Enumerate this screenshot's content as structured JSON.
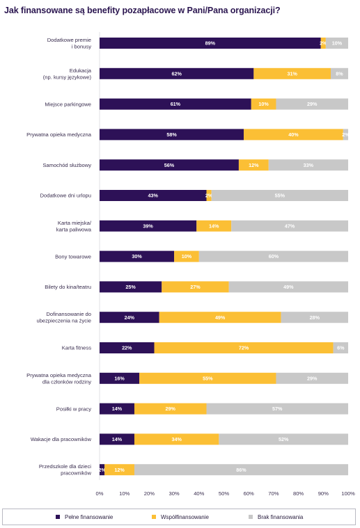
{
  "title": "Jak finansowane są benefity pozapłacowe w Pani/Pana organizacji?",
  "chart_data": {
    "type": "bar",
    "orientation": "horizontal",
    "stacked": true,
    "categories": [
      [
        "Dodatkowe premie",
        "i bonusy"
      ],
      [
        "Edukacja",
        "(np. kursy językowe)"
      ],
      [
        "Miejsce parkingowe"
      ],
      [
        "Prywatna opieka medyczna"
      ],
      [
        "Samochód służbowy"
      ],
      [
        "Dodatkowe dni urlopu"
      ],
      [
        "Karta miejska/",
        "karta paliwowa"
      ],
      [
        "Bony towarowe"
      ],
      [
        "Bilety do kina/teatru"
      ],
      [
        "Dofinansowanie do",
        "ubezpieczenia na życie"
      ],
      [
        "Karta fitness"
      ],
      [
        "Prywatna opieka medyczna",
        "dla członków rodziny"
      ],
      [
        "Posiłki w pracy"
      ],
      [
        "Wakacje dla pracowników"
      ],
      [
        "Przedszkole dla dzieci",
        "pracowników"
      ]
    ],
    "series": [
      {
        "name": "Pełne finansowanie",
        "color": "#2d1157",
        "label_color": "#ffffff",
        "values": [
          89,
          62,
          61,
          58,
          56,
          43,
          39,
          30,
          25,
          24,
          22,
          16,
          14,
          14,
          2
        ]
      },
      {
        "name": "Współfinansowanie",
        "color": "#fbbf35",
        "label_color": "#ffffff",
        "values": [
          2,
          31,
          10,
          40,
          12,
          2,
          14,
          10,
          27,
          49,
          72,
          55,
          29,
          34,
          12
        ]
      },
      {
        "name": "Brak finansowania",
        "color": "#c8c8c8",
        "label_color": "#ffffff",
        "values": [
          10,
          8,
          29,
          2,
          33,
          55,
          47,
          60,
          49,
          28,
          6,
          29,
          57,
          52,
          86
        ]
      }
    ],
    "xlim": [
      0,
      100
    ],
    "xticks": [
      "0%",
      "10%",
      "20%",
      "30%",
      "40%",
      "50%",
      "60%",
      "70%",
      "80%",
      "90%",
      "100%"
    ],
    "value_suffix": "%",
    "legend_position": "bottom"
  }
}
